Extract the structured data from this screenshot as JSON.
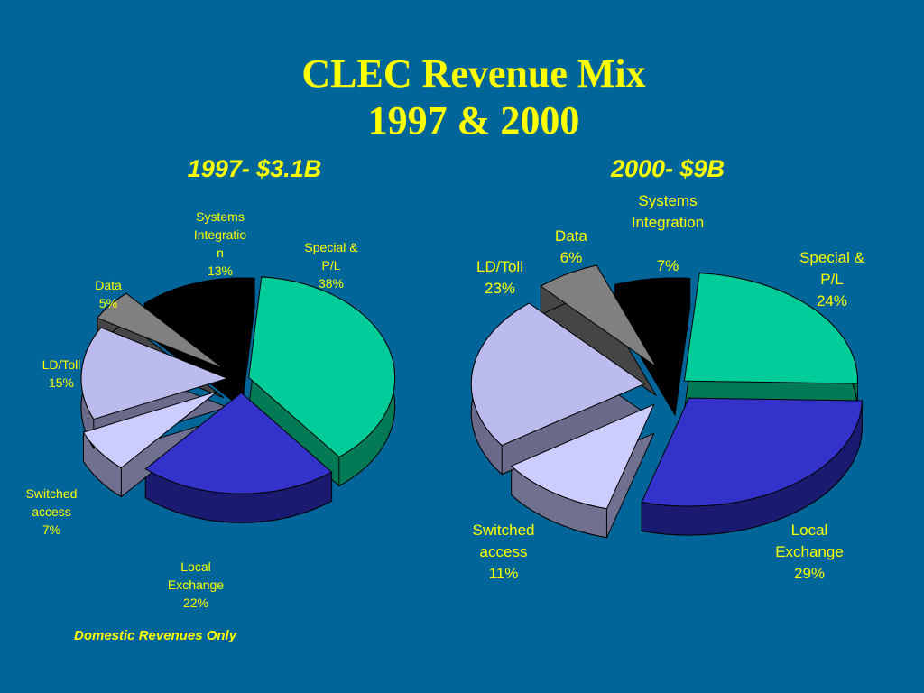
{
  "title_lines": [
    "CLEC Revenue Mix",
    "1997 & 2000"
  ],
  "footnote": "Domestic Revenues  Only",
  "chart_data": [
    {
      "type": "pie",
      "title": "1997- $3.1B",
      "unit": "%",
      "slices": [
        {
          "label_lines": [
            "Special &",
            "P/L",
            "38%"
          ],
          "value": 38,
          "color": "#00cc99",
          "side": "#007a55"
        },
        {
          "label_lines": [
            "Local",
            "Exchange",
            "22%"
          ],
          "value": 22,
          "color": "#3333cc",
          "side": "#1a1a70"
        },
        {
          "label_lines": [
            "Switched",
            "access",
            "7%"
          ],
          "value": 7,
          "color": "#ccccff",
          "side": "#707090"
        },
        {
          "label_lines": [
            "LD/Toll",
            "15%"
          ],
          "value": 15,
          "color": "#bbbbee",
          "side": "#6a6a8a"
        },
        {
          "label_lines": [
            "Data",
            "5%"
          ],
          "value": 5,
          "color": "#808080",
          "side": "#454545"
        },
        {
          "label_lines": [
            "Systems",
            "Integratio",
            "n",
            "13%"
          ],
          "value": 13,
          "color": "#000000",
          "side": "#000000"
        }
      ]
    },
    {
      "type": "pie",
      "title": "2000- $9B",
      "unit": "%",
      "slices": [
        {
          "label_lines": [
            "Special &",
            "P/L",
            "24%"
          ],
          "value": 24,
          "color": "#00cc99",
          "side": "#007a55"
        },
        {
          "label_lines": [
            "Local",
            "Exchange",
            "29%"
          ],
          "value": 29,
          "color": "#3333cc",
          "side": "#1a1a70"
        },
        {
          "label_lines": [
            "Switched",
            "access",
            "11%"
          ],
          "value": 11,
          "color": "#ccccff",
          "side": "#707090"
        },
        {
          "label_lines": [
            "LD/Toll",
            "23%"
          ],
          "value": 23,
          "color": "#bbbbee",
          "side": "#6a6a8a"
        },
        {
          "label_lines": [
            "Data",
            "6%"
          ],
          "value": 6,
          "color": "#808080",
          "side": "#454545"
        },
        {
          "label_lines": [
            "Systems",
            "Integration",
            "",
            "7%"
          ],
          "value": 7,
          "color": "#000000",
          "side": "#000000"
        }
      ]
    }
  ]
}
